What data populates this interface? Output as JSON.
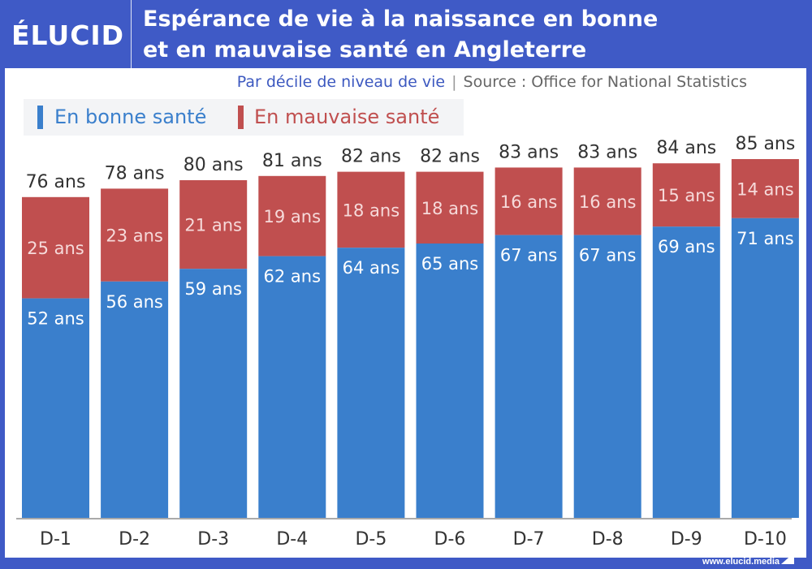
{
  "header": {
    "logo": "ÉLUCID",
    "title_line1": "Espérance de vie à la naissance en bonne",
    "title_line2": "et en mauvaise santé en Angleterre"
  },
  "subtitle": {
    "text": "Par décile de niveau de vie",
    "separator": "|",
    "source": "Source : Office for National Statistics"
  },
  "footer": {
    "url": "www.elucid.media"
  },
  "colors": {
    "good": "#3a7fcc",
    "bad": "#c04f4f",
    "frame": "#3f5ac6"
  },
  "chart_data": {
    "type": "bar",
    "stacked": true,
    "title": "Espérance de vie à la naissance en bonne et en mauvaise santé en Angleterre",
    "subtitle": "Par décile de niveau de vie",
    "source": "Office for National Statistics",
    "categories": [
      "D-1",
      "D-2",
      "D-3",
      "D-4",
      "D-5",
      "D-6",
      "D-7",
      "D-8",
      "D-9",
      "D-10"
    ],
    "series": [
      {
        "name": "En bonne santé",
        "color": "#3a7fcc",
        "values": [
          52,
          56,
          59,
          62,
          64,
          65,
          67,
          67,
          69,
          71
        ]
      },
      {
        "name": "En mauvaise santé",
        "color": "#c04f4f",
        "values": [
          25,
          23,
          21,
          19,
          18,
          18,
          16,
          16,
          15,
          14
        ]
      }
    ],
    "totals": [
      76,
      78,
      80,
      81,
      82,
      82,
      83,
      83,
      84,
      85
    ],
    "unit_label": "ans",
    "legend": "top-left",
    "grid": false,
    "xlabel": "",
    "ylabel": "",
    "ylim": [
      0,
      85
    ]
  }
}
